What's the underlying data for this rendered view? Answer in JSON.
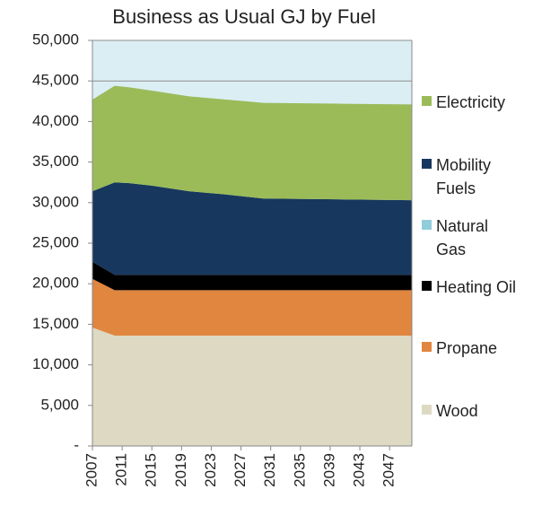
{
  "chart_data": {
    "type": "stacked_area",
    "title": "Business as Usual GJ by Fuel",
    "x": [
      2007,
      2010,
      2012,
      2015,
      2020,
      2025,
      2030,
      2040,
      2050
    ],
    "xlim": [
      2007,
      2050
    ],
    "xticks": [
      2007,
      2011,
      2015,
      2019,
      2023,
      2027,
      2031,
      2035,
      2039,
      2043,
      2047
    ],
    "ylim": [
      0,
      50000
    ],
    "yticks": [
      {
        "value": 0,
        "label": "-"
      },
      {
        "value": 5000,
        "label": "5,000"
      },
      {
        "value": 10000,
        "label": "10,000"
      },
      {
        "value": 15000,
        "label": "15,000"
      },
      {
        "value": 20000,
        "label": "20,000"
      },
      {
        "value": 25000,
        "label": "25,000"
      },
      {
        "value": 30000,
        "label": "30,000"
      },
      {
        "value": 35000,
        "label": "35,000"
      },
      {
        "value": 40000,
        "label": "40,000"
      },
      {
        "value": 45000,
        "label": "45,000"
      },
      {
        "value": 50000,
        "label": "50,000"
      }
    ],
    "grid": true,
    "plot_background": "#dbeef4",
    "legend": "right",
    "series": [
      {
        "name": "Wood",
        "color": "#ddd9c3",
        "values": [
          14600,
          13600,
          13600,
          13600,
          13600,
          13600,
          13600,
          13600,
          13600
        ]
      },
      {
        "name": "Propane",
        "color": "#e0863f",
        "values": [
          6000,
          5600,
          5600,
          5600,
          5600,
          5600,
          5600,
          5600,
          5600
        ]
      },
      {
        "name": "Heating Oil",
        "color": "#000000",
        "values": [
          2100,
          1900,
          1900,
          1900,
          1900,
          1900,
          1900,
          1900,
          1900
        ]
      },
      {
        "name": "Natural Gas",
        "color": "#92cddc",
        "values": [
          0,
          0,
          0,
          0,
          0,
          0,
          0,
          0,
          0
        ]
      },
      {
        "name": "Mobility Fuels",
        "color": "#17375e",
        "values": [
          8700,
          11400,
          11300,
          11000,
          10300,
          9900,
          9400,
          9300,
          9200
        ]
      },
      {
        "name": "Electricity",
        "color": "#9bbb59",
        "values": [
          11300,
          11900,
          11800,
          11700,
          11700,
          11700,
          11800,
          11800,
          11800
        ]
      }
    ]
  }
}
